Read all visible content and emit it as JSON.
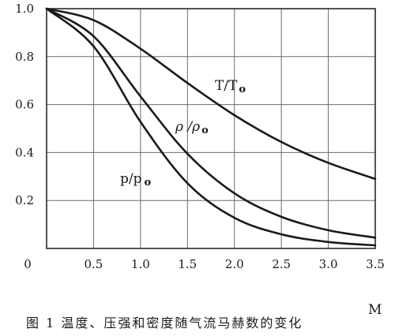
{
  "chart_data": {
    "type": "line",
    "title": "",
    "xlabel": "M",
    "ylabel": "",
    "xlim": [
      0,
      3.5
    ],
    "ylim": [
      0,
      1.0
    ],
    "grid": true,
    "x_ticks": [
      "0",
      "0.5",
      "1.0",
      "1.5",
      "2.0",
      "2.5",
      "3.0",
      "3.5"
    ],
    "y_ticks": [
      "0.2",
      "0.4",
      "0.6",
      "0.8",
      "1.0"
    ],
    "series": [
      {
        "name": "T/To",
        "x": [
          0,
          0.5,
          1.0,
          1.5,
          2.0,
          2.5,
          3.0,
          3.5
        ],
        "values": [
          1.0,
          0.952,
          0.833,
          0.69,
          0.556,
          0.444,
          0.357,
          0.29
        ]
      },
      {
        "name": "ρ /ρo",
        "x": [
          0,
          0.5,
          1.0,
          1.5,
          2.0,
          2.5,
          3.0,
          3.5
        ],
        "values": [
          1.0,
          0.885,
          0.634,
          0.395,
          0.23,
          0.132,
          0.076,
          0.045
        ]
      },
      {
        "name": "p/po",
        "x": [
          0,
          0.5,
          1.0,
          1.5,
          2.0,
          2.5,
          3.0,
          3.5
        ],
        "values": [
          1.0,
          0.843,
          0.528,
          0.272,
          0.128,
          0.059,
          0.027,
          0.013
        ]
      }
    ],
    "labels": {
      "T": {
        "main": "T/T",
        "sub": "o"
      },
      "rho": {
        "main": "ρ /ρ",
        "sub": "o"
      },
      "p": {
        "main": "p/p",
        "sub": "o"
      }
    },
    "caption": "图 1   温度、压强和密度随气流马赫数的变化"
  }
}
